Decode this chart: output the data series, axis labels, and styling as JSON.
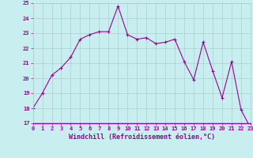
{
  "x": [
    0,
    1,
    2,
    3,
    4,
    5,
    6,
    7,
    8,
    9,
    10,
    11,
    12,
    13,
    14,
    15,
    16,
    17,
    18,
    19,
    20,
    21,
    22,
    23
  ],
  "y": [
    18.0,
    19.0,
    20.2,
    20.7,
    21.4,
    22.6,
    22.9,
    23.1,
    23.1,
    24.8,
    22.9,
    22.6,
    22.7,
    22.3,
    22.4,
    22.6,
    21.1,
    19.9,
    22.4,
    20.5,
    18.7,
    21.1,
    17.9,
    16.7
  ],
  "ylim": [
    17,
    25
  ],
  "yticks": [
    17,
    18,
    19,
    20,
    21,
    22,
    23,
    24,
    25
  ],
  "xticks": [
    0,
    1,
    2,
    3,
    4,
    5,
    6,
    7,
    8,
    9,
    10,
    11,
    12,
    13,
    14,
    15,
    16,
    17,
    18,
    19,
    20,
    21,
    22,
    23
  ],
  "xlabel": "Windchill (Refroidissement éolien,°C)",
  "line_color": "#990099",
  "marker_color": "#990099",
  "bg_color": "#c8eef0",
  "grid_color": "#b0ccd0",
  "tick_label_color": "#990099",
  "axis_label_color": "#990099",
  "tick_fontsize": 5.0,
  "label_fontsize": 6.0
}
